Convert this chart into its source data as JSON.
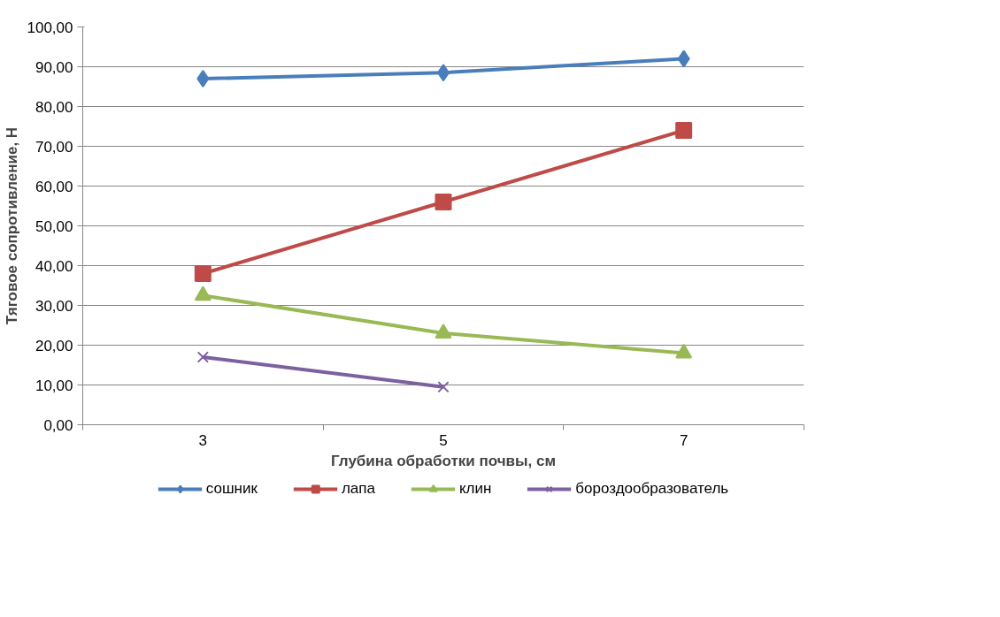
{
  "chart_data": {
    "type": "line",
    "xlabel": "Глубина обработки почвы, см",
    "ylabel": "Тяговое сопротивление, Н",
    "categories": [
      "3",
      "5",
      "7"
    ],
    "series": [
      {
        "name": "сошник",
        "color": "#4a7ebb",
        "marker": "diamond",
        "values": [
          87,
          88.5,
          92
        ]
      },
      {
        "name": "лапа",
        "color": "#be4b48",
        "marker": "square",
        "values": [
          38,
          56,
          74
        ]
      },
      {
        "name": "клин",
        "color": "#98b954",
        "marker": "triangle",
        "values": [
          32.5,
          23,
          18
        ]
      },
      {
        "name": "бороздообразователь",
        "color": "#7d60a0",
        "marker": "cross",
        "values": [
          17,
          9.5,
          null
        ]
      }
    ],
    "ylim": [
      0,
      100
    ],
    "yticks": [
      {
        "value": 0,
        "label": "0,00"
      },
      {
        "value": 10,
        "label": "10,00"
      },
      {
        "value": 20,
        "label": "20,00"
      },
      {
        "value": 30,
        "label": "30,00"
      },
      {
        "value": 40,
        "label": "40,00"
      },
      {
        "value": 50,
        "label": "50,00"
      },
      {
        "value": 60,
        "label": "60,00"
      },
      {
        "value": 70,
        "label": "70,00"
      },
      {
        "value": 80,
        "label": "80,00"
      },
      {
        "value": 90,
        "label": "90,00"
      },
      {
        "value": 100,
        "label": "100,00"
      }
    ],
    "grid": "y",
    "legend": "bottom",
    "line_style": "solid"
  }
}
